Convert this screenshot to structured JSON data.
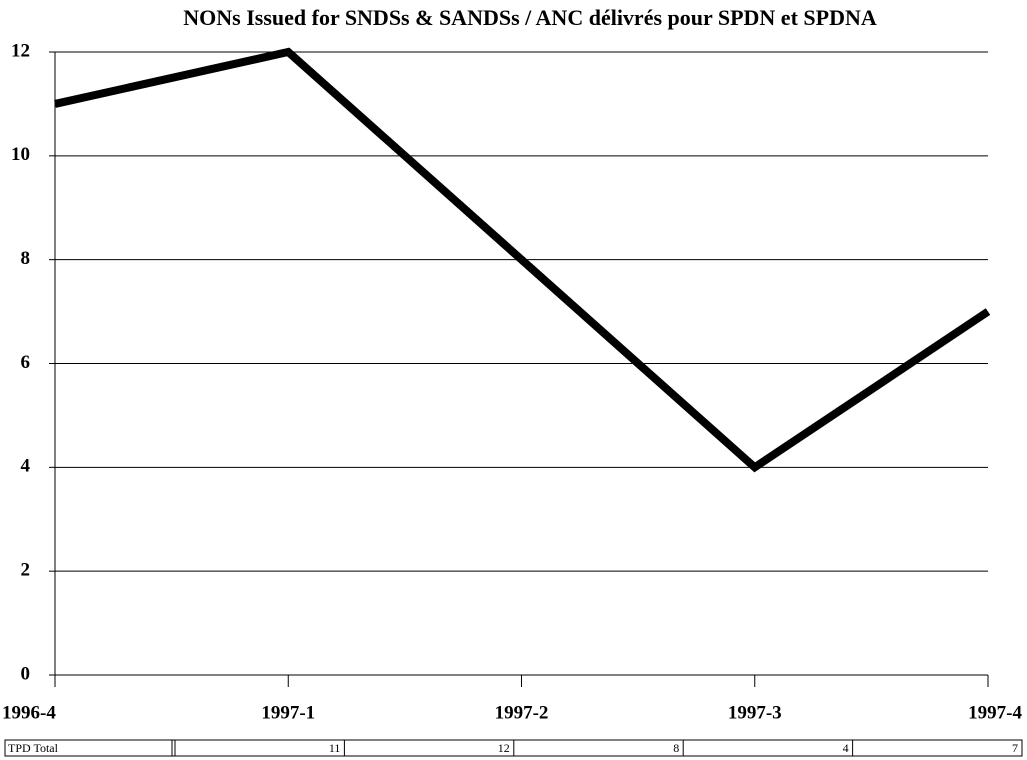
{
  "chart_data": {
    "type": "line",
    "title": "NONs Issued for SNDSs & SANDSs / ANC délivrés pour SPDN et SPDNA",
    "categories": [
      "1996-4",
      "1997-1",
      "1997-2",
      "1997-3",
      "1997-4"
    ],
    "series": [
      {
        "name": "TPD Total",
        "color": "#000000",
        "values": [
          11,
          12,
          8,
          4,
          7
        ]
      }
    ],
    "ylim": [
      0,
      12
    ],
    "yticks": [
      0,
      2,
      4,
      6,
      8,
      10,
      12
    ],
    "grid": true
  }
}
